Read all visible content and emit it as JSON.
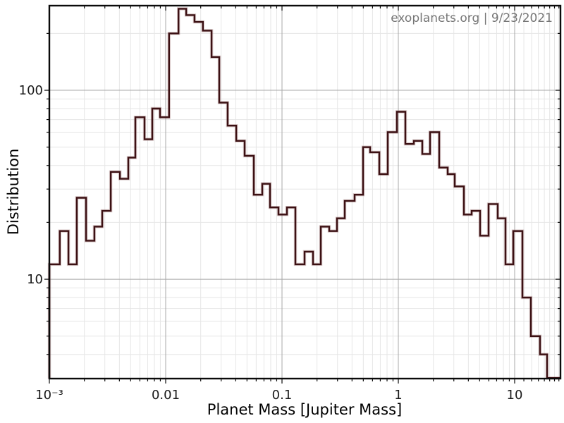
{
  "chart": {
    "watermark": "exoplanets.org | 9/23/2021",
    "xlabel": "Planet Mass [Jupiter Mass]",
    "ylabel": "Distribution"
  },
  "chart_data": {
    "type": "histogram",
    "title": "",
    "xlabel": "Planet Mass [Jupiter Mass]",
    "ylabel": "Distribution",
    "x_scale": "log",
    "y_scale": "log",
    "xlim": [
      0.001,
      24.77
    ],
    "ylim": [
      2.98,
      280.5
    ],
    "grid": true,
    "legend": "none",
    "watermark": "exoplanets.org | 9/23/2021",
    "colors": {
      "line": "#3b1013",
      "line_halo": "#9b6f6f",
      "grid_minor": "#e6e6e6",
      "grid_major": "#a8a8a8",
      "frame": "#0a0a0a",
      "tick_label": "#1a1a1a",
      "watermark": "#767676"
    },
    "x_axis": {
      "majors": [
        {
          "v": 0.001,
          "label": "10⁻³"
        },
        {
          "v": 0.01,
          "label": "0.01"
        },
        {
          "v": 0.1,
          "label": "0.1"
        },
        {
          "v": 1,
          "label": "1"
        },
        {
          "v": 10,
          "label": "10"
        }
      ],
      "minors": [
        0.002,
        0.003,
        0.004,
        0.005,
        0.006,
        0.007,
        0.008,
        0.009,
        0.02,
        0.03,
        0.04,
        0.05,
        0.06,
        0.07,
        0.08,
        0.09,
        0.2,
        0.3,
        0.4,
        0.5,
        0.6,
        0.7,
        0.8,
        0.9,
        2,
        3,
        4,
        5,
        6,
        7,
        8,
        9,
        12,
        14,
        16,
        18,
        20,
        22,
        24
      ]
    },
    "y_axis": {
      "majors": [
        {
          "v": 10,
          "label": "10"
        },
        {
          "v": 100,
          "label": "100"
        }
      ],
      "minors": [
        4,
        5,
        6,
        7,
        8,
        9,
        20,
        30,
        40,
        50,
        60,
        70,
        80,
        90,
        200
      ]
    },
    "bin_edges": [
      0.001,
      0.00123,
      0.00146,
      0.00172,
      0.00207,
      0.00244,
      0.00285,
      0.00337,
      0.00404,
      0.00477,
      0.00549,
      0.00658,
      0.00767,
      0.00894,
      0.0107,
      0.0129,
      0.015,
      0.0177,
      0.0209,
      0.0248,
      0.0289,
      0.0341,
      0.0404,
      0.0477,
      0.0572,
      0.0677,
      0.0789,
      0.0933,
      0.1102,
      0.1303,
      0.1563,
      0.1848,
      0.2154,
      0.2546,
      0.2968,
      0.3461,
      0.4208,
      0.4977,
      0.5723,
      0.6863,
      0.8112,
      0.9725,
      1.15,
      1.359,
      1.607,
      1.873,
      2.248,
      2.656,
      3.054,
      3.662,
      4.269,
      5.046,
      5.963,
      7.156,
      8.344,
      9.727,
      11.66,
      13.79,
      16.52,
      19.0,
      24.77
    ],
    "counts": [
      12,
      18,
      12,
      27,
      16,
      19,
      23,
      37,
      34,
      44,
      72,
      55,
      80,
      72,
      200,
      270,
      250,
      230,
      207,
      150,
      86,
      65,
      54,
      45,
      28,
      32,
      24,
      22,
      24,
      12,
      14,
      12,
      19,
      18,
      21,
      26,
      28,
      50,
      47,
      36,
      60,
      77,
      52,
      54,
      46,
      60,
      39,
      36,
      31,
      22,
      23,
      17,
      25,
      21,
      12,
      18,
      8,
      5,
      4,
      3
    ]
  }
}
